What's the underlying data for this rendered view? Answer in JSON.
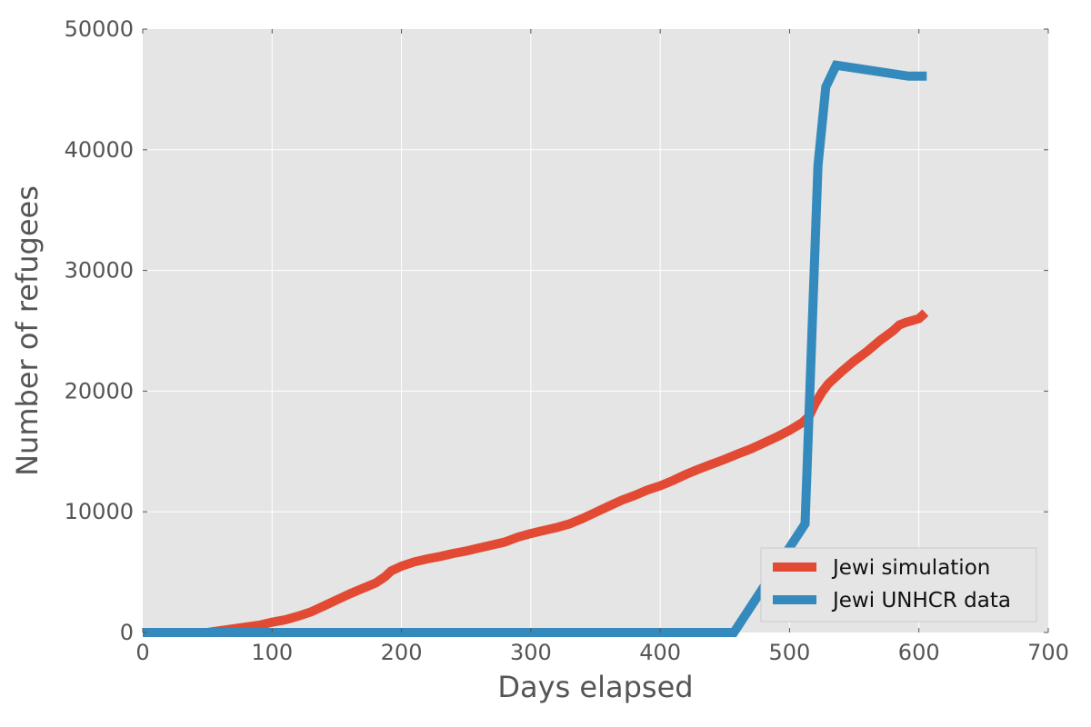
{
  "chart_data": {
    "type": "line",
    "title": "",
    "xlabel": "Days elapsed",
    "ylabel": "Number of refugees",
    "xlim": [
      0,
      700
    ],
    "ylim": [
      0,
      50000
    ],
    "x_ticks": [
      0,
      100,
      200,
      300,
      400,
      500,
      600,
      700
    ],
    "y_ticks": [
      0,
      10000,
      20000,
      30000,
      40000,
      50000
    ],
    "grid": true,
    "legend_position": "bottom-right",
    "series": [
      {
        "name": "Jewi simulation",
        "color": "#e24a33",
        "points": [
          [
            0,
            0
          ],
          [
            50,
            0
          ],
          [
            60,
            150
          ],
          [
            70,
            300
          ],
          [
            80,
            450
          ],
          [
            90,
            600
          ],
          [
            100,
            850
          ],
          [
            110,
            1050
          ],
          [
            120,
            1350
          ],
          [
            130,
            1700
          ],
          [
            140,
            2200
          ],
          [
            150,
            2700
          ],
          [
            160,
            3200
          ],
          [
            170,
            3650
          ],
          [
            180,
            4100
          ],
          [
            187,
            4600
          ],
          [
            192,
            5100
          ],
          [
            200,
            5500
          ],
          [
            210,
            5850
          ],
          [
            220,
            6100
          ],
          [
            230,
            6300
          ],
          [
            240,
            6550
          ],
          [
            250,
            6750
          ],
          [
            260,
            7000
          ],
          [
            270,
            7250
          ],
          [
            280,
            7500
          ],
          [
            290,
            7900
          ],
          [
            300,
            8200
          ],
          [
            310,
            8450
          ],
          [
            320,
            8700
          ],
          [
            330,
            9000
          ],
          [
            340,
            9450
          ],
          [
            350,
            9950
          ],
          [
            360,
            10450
          ],
          [
            370,
            10950
          ],
          [
            380,
            11350
          ],
          [
            390,
            11800
          ],
          [
            400,
            12150
          ],
          [
            410,
            12600
          ],
          [
            420,
            13100
          ],
          [
            430,
            13550
          ],
          [
            440,
            13950
          ],
          [
            450,
            14350
          ],
          [
            460,
            14800
          ],
          [
            470,
            15200
          ],
          [
            480,
            15700
          ],
          [
            490,
            16200
          ],
          [
            500,
            16750
          ],
          [
            510,
            17400
          ],
          [
            515,
            17900
          ],
          [
            520,
            19000
          ],
          [
            525,
            19900
          ],
          [
            530,
            20600
          ],
          [
            540,
            21600
          ],
          [
            550,
            22500
          ],
          [
            560,
            23300
          ],
          [
            570,
            24200
          ],
          [
            580,
            25000
          ],
          [
            585,
            25500
          ],
          [
            590,
            25700
          ],
          [
            600,
            26000
          ],
          [
            605,
            26500
          ]
        ]
      },
      {
        "name": "Jewi UNHCR data",
        "color": "#348abd",
        "points": [
          [
            0,
            0
          ],
          [
            457,
            0
          ],
          [
            512,
            9000
          ],
          [
            522,
            38700
          ],
          [
            528,
            45200
          ],
          [
            536,
            47000
          ],
          [
            592,
            46100
          ],
          [
            606,
            46100
          ]
        ]
      }
    ]
  }
}
